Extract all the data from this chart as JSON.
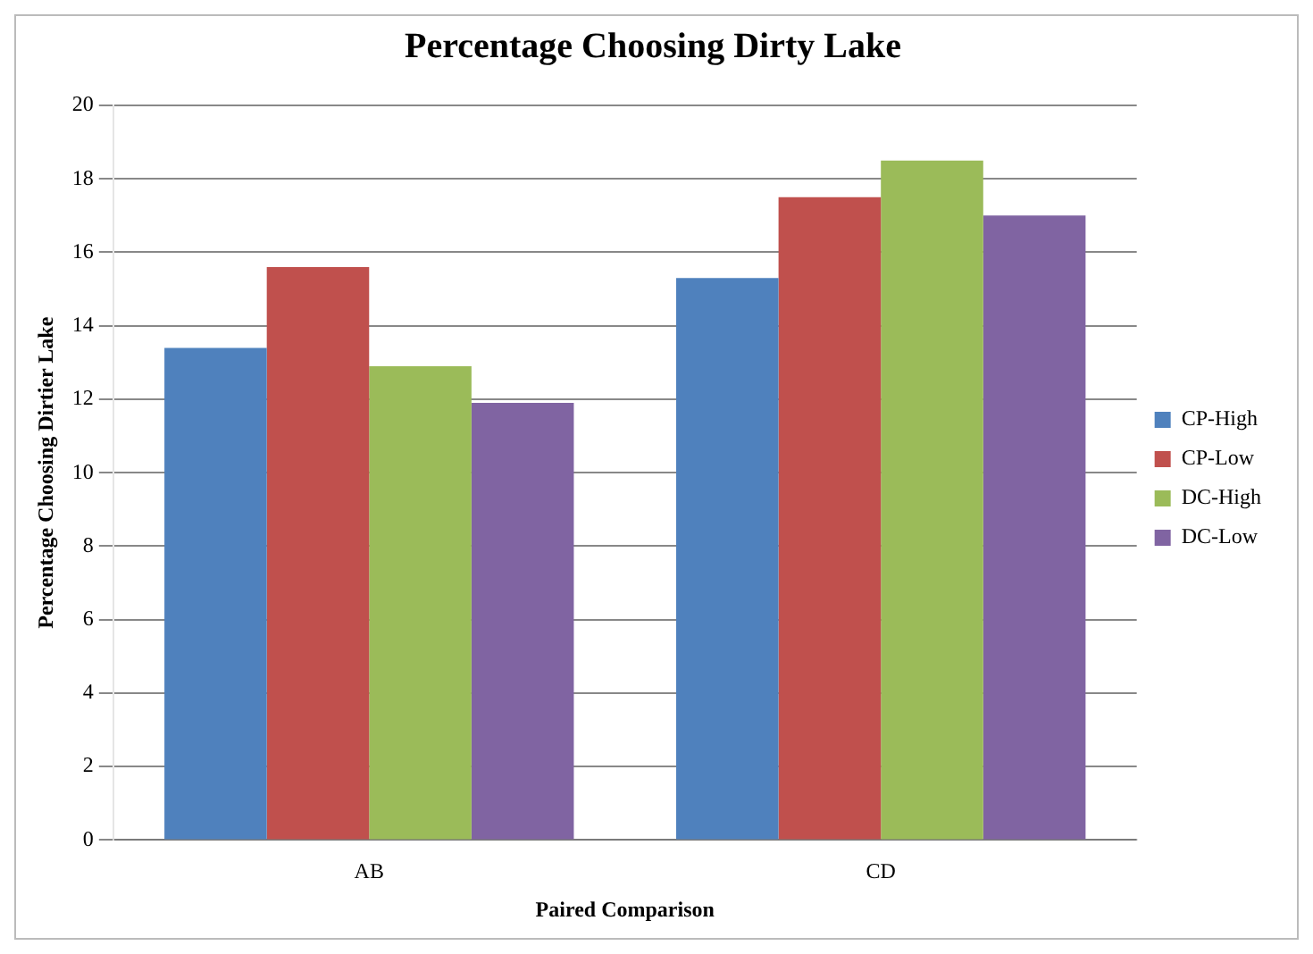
{
  "chart_data": {
    "type": "bar",
    "title": "Percentage Choosing Dirty Lake",
    "xlabel": "Paired Comparison",
    "ylabel": "Percentage Choosing Dirtier Lake",
    "categories": [
      "AB",
      "CD"
    ],
    "series": [
      {
        "name": "CP-High",
        "color": "#4f81bd",
        "values": [
          13.4,
          15.3
        ]
      },
      {
        "name": "CP-Low",
        "color": "#c0504d",
        "values": [
          15.6,
          17.5
        ]
      },
      {
        "name": "DC-High",
        "color": "#9bbb59",
        "values": [
          12.9,
          18.5
        ]
      },
      {
        "name": "DC-Low",
        "color": "#8064a2",
        "values": [
          11.9,
          17.0
        ]
      }
    ],
    "ylim": [
      0,
      20
    ],
    "yticks": [
      0,
      2,
      4,
      6,
      8,
      10,
      12,
      14,
      16,
      18,
      20
    ],
    "grid": "y",
    "legend": "right"
  }
}
